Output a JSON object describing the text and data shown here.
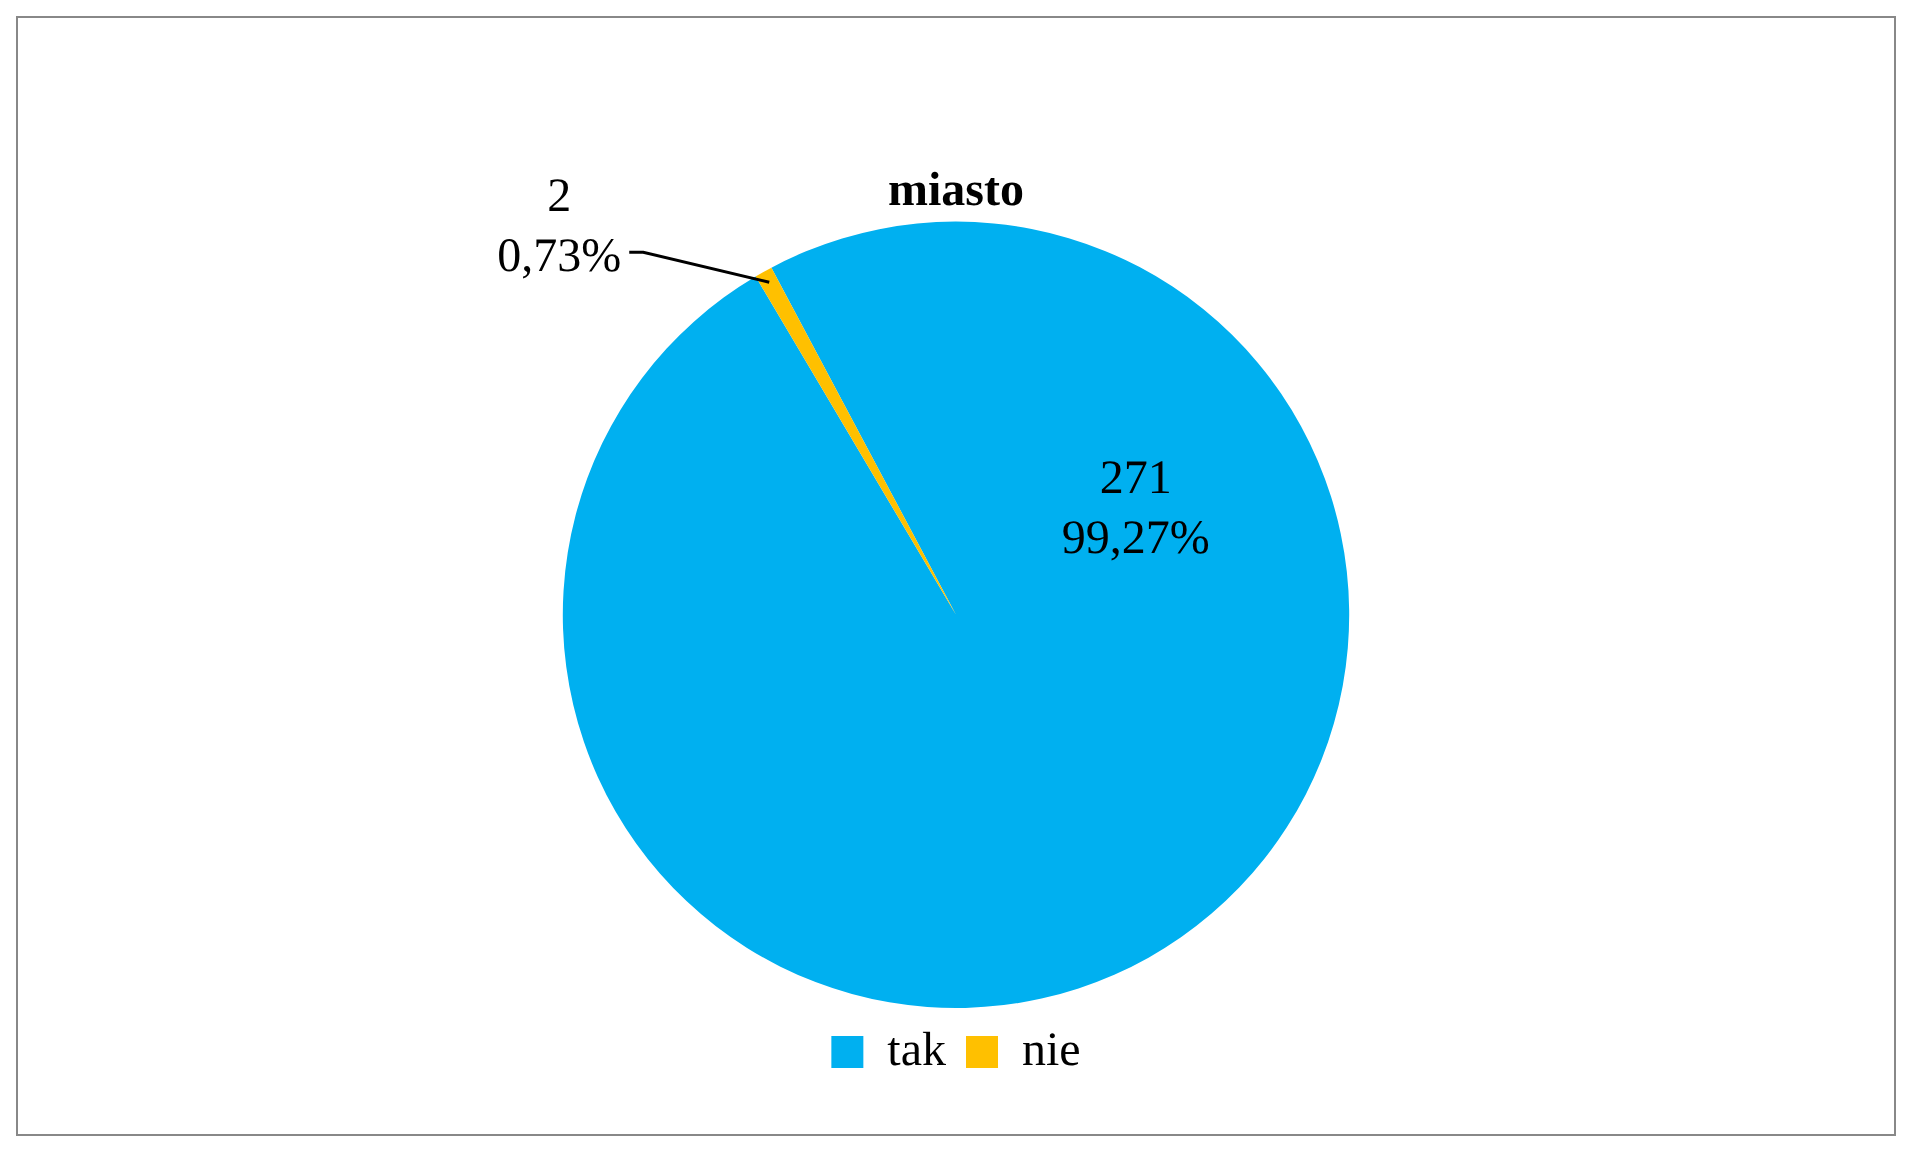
{
  "chart_data": {
    "type": "pie",
    "title": "miasto",
    "categories": [
      "tak",
      "nie"
    ],
    "values": [
      271,
      2
    ],
    "colors": [
      "#00b0f0",
      "#ffc000"
    ],
    "value_labels": [
      "271\n99,27%",
      "2\n0,73%"
    ],
    "legend": "bottom"
  }
}
